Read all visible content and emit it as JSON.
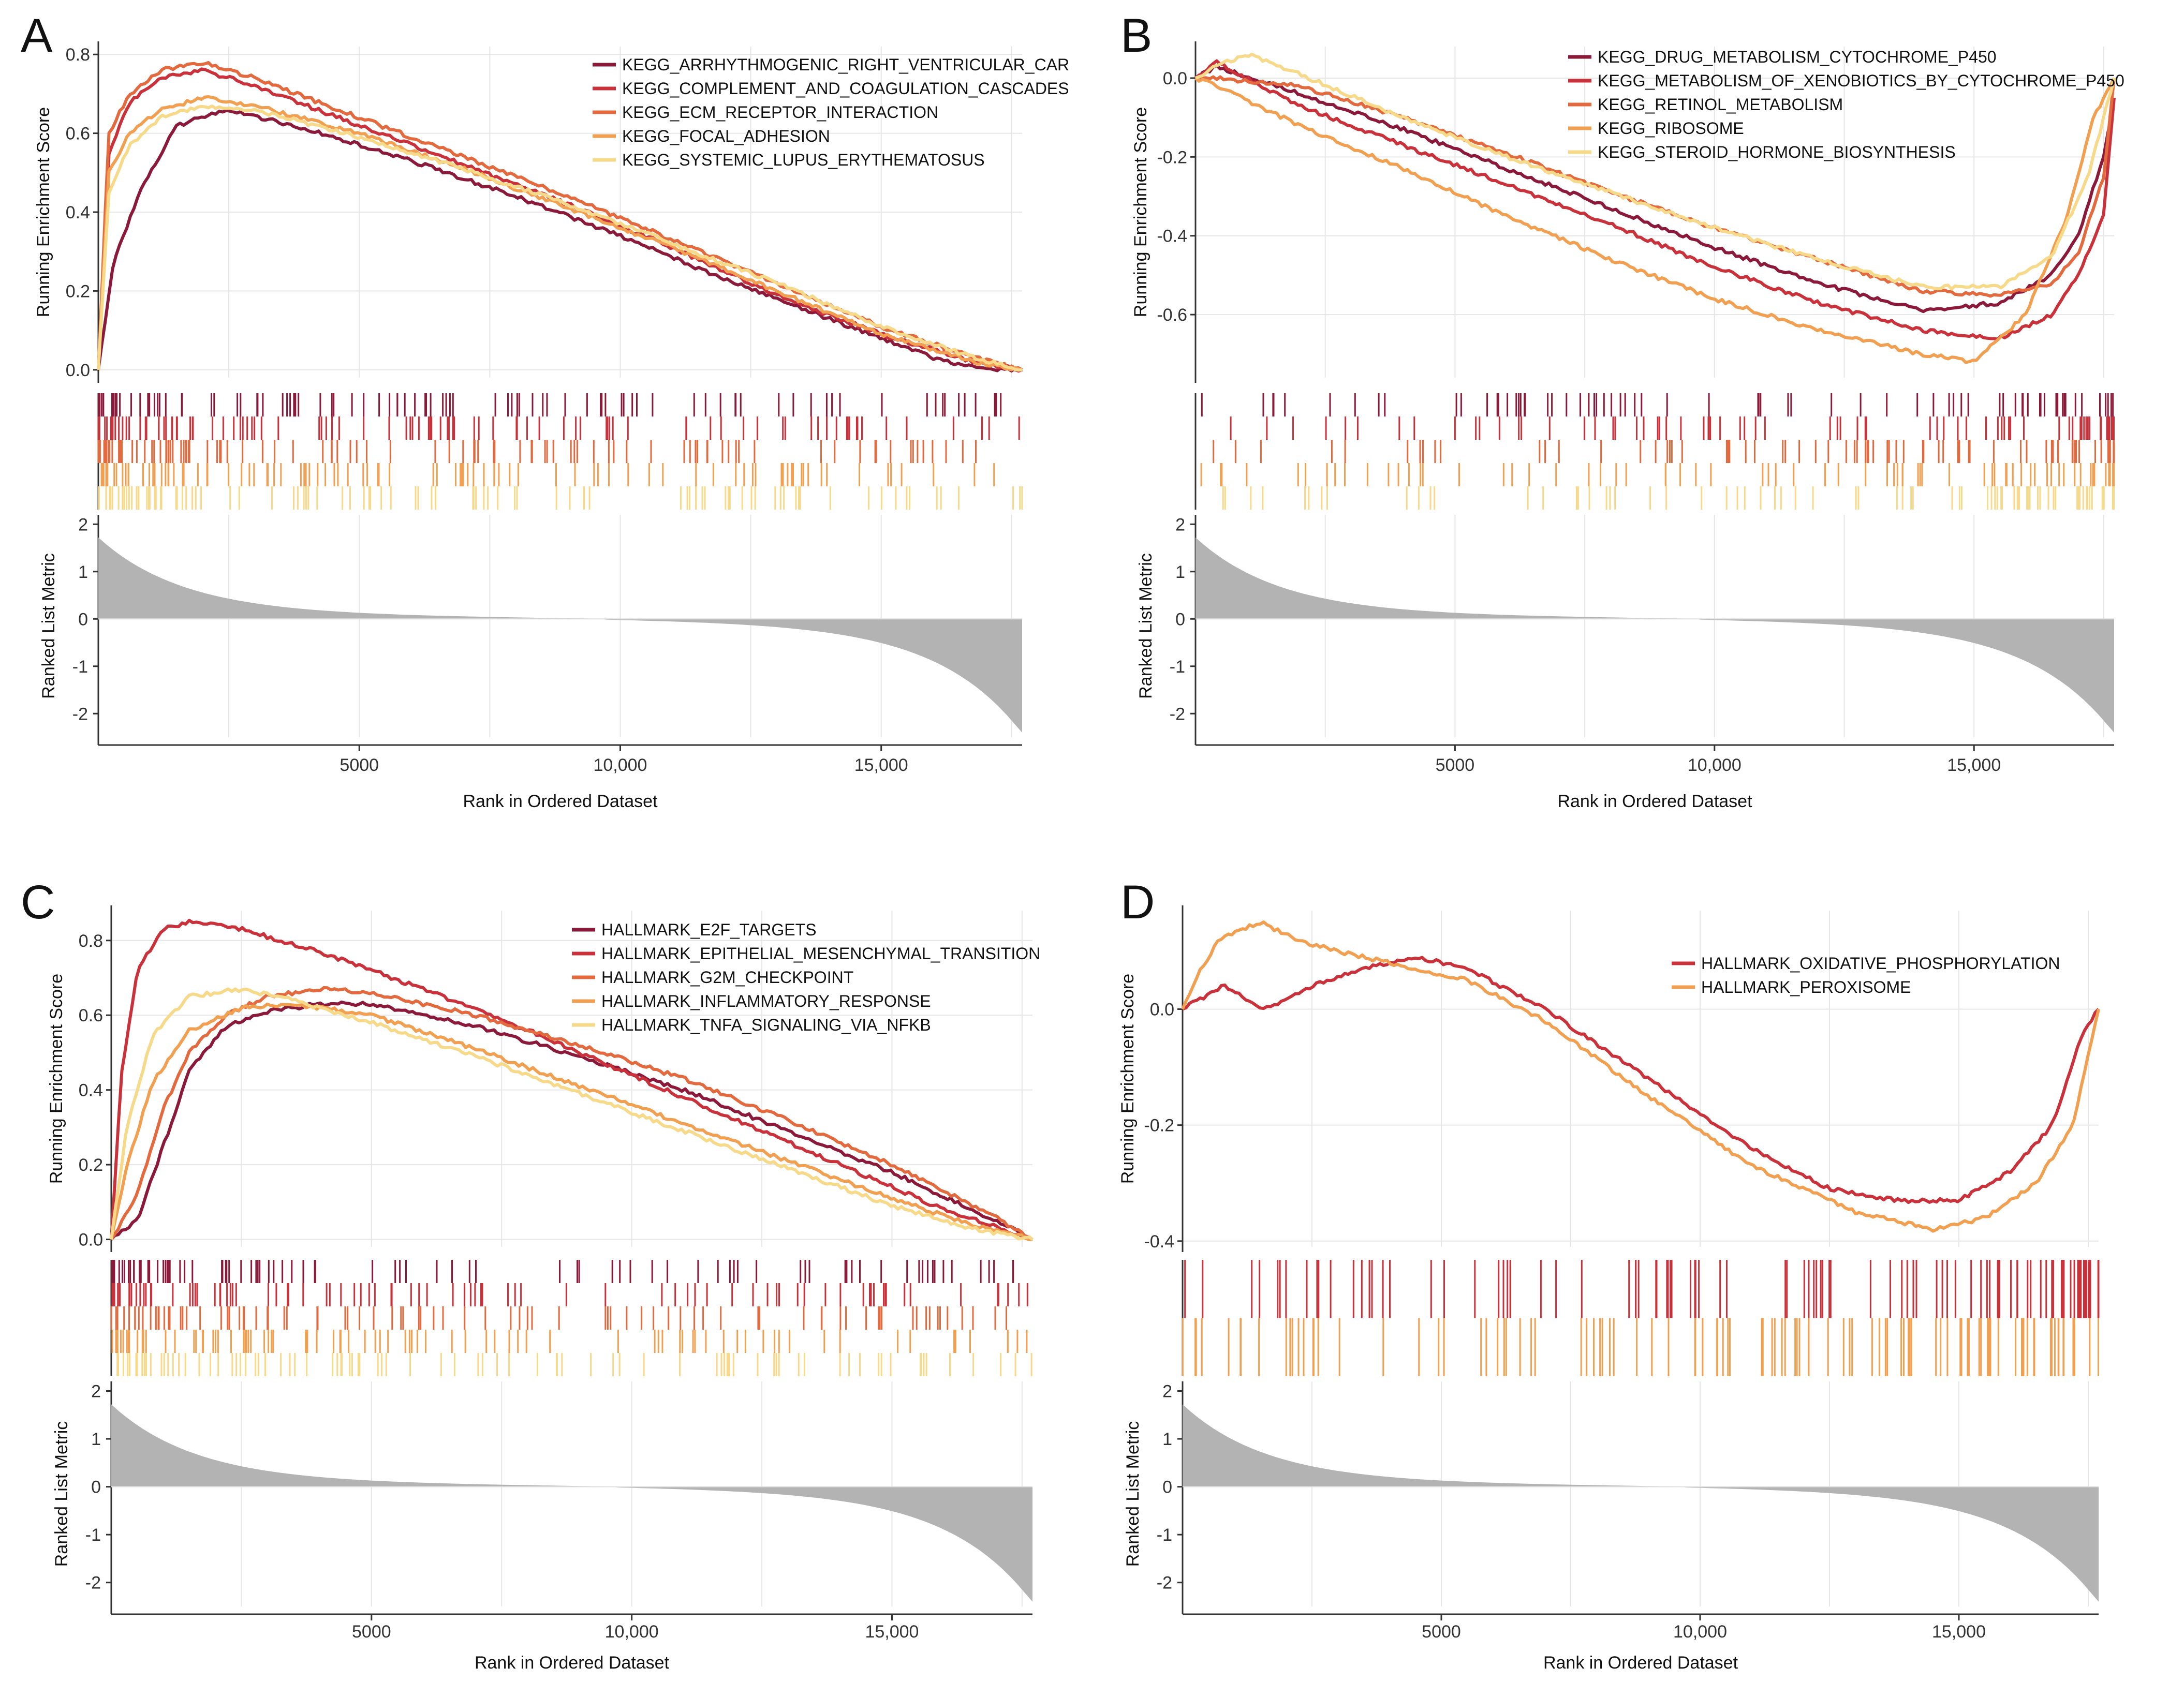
{
  "figure": {
    "description_labels": [
      "A",
      "B",
      "C",
      "D"
    ]
  },
  "colors": {
    "dark_red": "#8b1a3a",
    "red": "#c9313b",
    "orange_red": "#e36a3e",
    "orange": "#f0a050",
    "light_yellow": "#f7d98a",
    "metric_fill": "#b3b3b3"
  },
  "chart_data": [
    {
      "panel": "A",
      "type": "line",
      "subtype": "gsea_enrichment",
      "xlabel": "Rank in Ordered Dataset",
      "ylabel_top": "Running Enrichment Score",
      "ylabel_bottom": "Ranked List Metric",
      "x_ticks": [
        5000,
        10000,
        15000
      ],
      "x_tick_labels": [
        "5000",
        "10,000",
        "15,000"
      ],
      "xlim": [
        0,
        17700
      ],
      "es_ylim": [
        -0.02,
        0.82
      ],
      "es_ticks": [
        0.0,
        0.2,
        0.4,
        0.6,
        0.8
      ],
      "es_tick_labels": [
        "0.0",
        "0.2",
        "0.4",
        "0.6",
        "0.8"
      ],
      "metric_ylim": [
        -2.5,
        2.2
      ],
      "metric_ticks": [
        2,
        1,
        0,
        -1,
        -2
      ],
      "metric_tick_labels": [
        "2",
        "1",
        "0",
        "-1",
        "-2"
      ],
      "legend_position": "top-right",
      "series": [
        {
          "name": "KEGG_ARRHYTHMOGENIC_RIGHT_VENTRICULAR_CARDIOMYOPATHY_ARVC",
          "label": "KEGG_ARRHYTHMOGENIC_RIGHT_VENTRICULAR_CAR",
          "color": "#8b1a3a",
          "x": [
            0,
            300,
            800,
            1500,
            2500,
            4000,
            6000,
            8000,
            10000,
            12000,
            14000,
            16000,
            17000,
            17700
          ],
          "y": [
            0.0,
            0.28,
            0.45,
            0.62,
            0.66,
            0.61,
            0.53,
            0.44,
            0.34,
            0.23,
            0.13,
            0.03,
            0.0,
            0.0
          ]
        },
        {
          "name": "KEGG_COMPLEMENT_AND_COAGULATION_CASCADES",
          "label": "KEGG_COMPLEMENT_AND_COAGULATION_CASCADES",
          "color": "#c9313b",
          "x": [
            0,
            200,
            600,
            1200,
            2000,
            3000,
            5000,
            7000,
            9000,
            11000,
            13000,
            15000,
            16800,
            17700
          ],
          "y": [
            0.0,
            0.55,
            0.68,
            0.74,
            0.76,
            0.72,
            0.62,
            0.52,
            0.42,
            0.31,
            0.19,
            0.09,
            0.02,
            0.0
          ]
        },
        {
          "name": "KEGG_ECM_RECEPTOR_INTERACTION",
          "label": "KEGG_ECM_RECEPTOR_INTERACTION",
          "color": "#e36a3e",
          "x": [
            0,
            200,
            600,
            1200,
            2000,
            3000,
            5000,
            7000,
            9000,
            11000,
            13000,
            15000,
            16800,
            17700
          ],
          "y": [
            0.0,
            0.6,
            0.7,
            0.76,
            0.78,
            0.74,
            0.64,
            0.54,
            0.44,
            0.33,
            0.22,
            0.11,
            0.03,
            0.0
          ]
        },
        {
          "name": "KEGG_FOCAL_ADHESION",
          "label": "KEGG_FOCAL_ADHESION",
          "color": "#f0a050",
          "x": [
            0,
            200,
            600,
            1200,
            2000,
            3000,
            5000,
            7000,
            9000,
            11000,
            13000,
            15000,
            16800,
            17700
          ],
          "y": [
            0.0,
            0.5,
            0.6,
            0.66,
            0.69,
            0.67,
            0.6,
            0.51,
            0.41,
            0.31,
            0.2,
            0.09,
            0.02,
            0.0
          ]
        },
        {
          "name": "KEGG_SYSTEMIC_LUPUS_ERYTHEMATOSUS",
          "label": "KEGG_SYSTEMIC_LUPUS_ERYTHEMATOSUS",
          "color": "#f7d98a",
          "x": [
            0,
            200,
            600,
            1200,
            2000,
            3000,
            5000,
            7000,
            9000,
            11000,
            13000,
            15000,
            16800,
            17700
          ],
          "y": [
            0.0,
            0.45,
            0.57,
            0.64,
            0.67,
            0.66,
            0.59,
            0.51,
            0.42,
            0.32,
            0.22,
            0.11,
            0.03,
            0.0
          ]
        }
      ]
    },
    {
      "panel": "B",
      "type": "line",
      "subtype": "gsea_enrichment",
      "xlabel": "Rank in Ordered Dataset",
      "ylabel_top": "Running Enrichment Score",
      "ylabel_bottom": "Ranked List Metric",
      "x_ticks": [
        5000,
        10000,
        15000
      ],
      "x_tick_labels": [
        "5000",
        "10,000",
        "15,000"
      ],
      "xlim": [
        0,
        17700
      ],
      "es_ylim": [
        -0.76,
        0.08
      ],
      "es_ticks": [
        0.0,
        -0.2,
        -0.4,
        -0.6
      ],
      "es_tick_labels": [
        "0.0",
        "-0.2",
        "-0.4",
        "-0.6"
      ],
      "metric_ylim": [
        -2.5,
        2.2
      ],
      "metric_ticks": [
        2,
        1,
        0,
        -1,
        -2
      ],
      "metric_tick_labels": [
        "2",
        "1",
        "0",
        "-1",
        "-2"
      ],
      "legend_position": "top-right",
      "series": [
        {
          "name": "KEGG_DRUG_METABOLISM_CYTOCHROME_P450",
          "label": "KEGG_DRUG_METABOLISM_CYTOCHROME_P450",
          "color": "#8b1a3a",
          "x": [
            0,
            400,
            2000,
            4000,
            6000,
            8000,
            10000,
            12000,
            14000,
            15500,
            16500,
            17000,
            17500,
            17700
          ],
          "y": [
            0.0,
            0.03,
            -0.04,
            -0.13,
            -0.23,
            -0.33,
            -0.43,
            -0.52,
            -0.59,
            -0.57,
            -0.5,
            -0.4,
            -0.2,
            -0.05
          ]
        },
        {
          "name": "KEGG_METABOLISM_OF_XENOBIOTICS_BY_CYTOCHROME_P450",
          "label": "KEGG_METABOLISM_OF_XENOBIOTICS_BY_CYTOCHROME_P450",
          "color": "#c9313b",
          "x": [
            0,
            400,
            2000,
            4000,
            6000,
            8000,
            10000,
            12000,
            14000,
            15500,
            16500,
            17000,
            17500,
            17700
          ],
          "y": [
            0.0,
            0.04,
            -0.07,
            -0.17,
            -0.27,
            -0.37,
            -0.48,
            -0.57,
            -0.64,
            -0.66,
            -0.6,
            -0.5,
            -0.35,
            -0.05
          ]
        },
        {
          "name": "KEGG_RETINOL_METABOLISM",
          "label": "KEGG_RETINOL_METABOLISM",
          "color": "#e36a3e",
          "x": [
            0,
            400,
            2000,
            4000,
            6000,
            8000,
            10000,
            12000,
            14000,
            15500,
            16500,
            17000,
            17500,
            17700
          ],
          "y": [
            0.0,
            0.0,
            -0.02,
            -0.1,
            -0.19,
            -0.29,
            -0.38,
            -0.46,
            -0.54,
            -0.55,
            -0.52,
            -0.45,
            -0.25,
            0.0
          ]
        },
        {
          "name": "KEGG_RIBOSOME",
          "label": "KEGG_RIBOSOME",
          "color": "#f0a050",
          "x": [
            0,
            400,
            2000,
            4000,
            6000,
            8000,
            10000,
            12000,
            14000,
            15000,
            16000,
            16800,
            17300,
            17700
          ],
          "y": [
            0.0,
            -0.02,
            -0.12,
            -0.23,
            -0.35,
            -0.46,
            -0.56,
            -0.64,
            -0.7,
            -0.72,
            -0.6,
            -0.35,
            -0.1,
            0.0
          ]
        },
        {
          "name": "KEGG_STEROID_HORMONE_BIOSYNTHESIS",
          "label": "KEGG_STEROID_HORMONE_BIOSYNTHESIS",
          "color": "#f7d98a",
          "x": [
            0,
            400,
            1000,
            2000,
            4000,
            6000,
            8000,
            10000,
            12000,
            14000,
            15500,
            16500,
            17200,
            17700
          ],
          "y": [
            0.0,
            0.03,
            0.06,
            0.01,
            -0.1,
            -0.2,
            -0.29,
            -0.38,
            -0.46,
            -0.53,
            -0.53,
            -0.45,
            -0.25,
            0.0
          ]
        }
      ]
    },
    {
      "panel": "C",
      "type": "line",
      "subtype": "gsea_enrichment",
      "xlabel": "Rank in Ordered Dataset",
      "ylabel_top": "Running Enrichment Score",
      "ylabel_bottom": "Ranked List Metric",
      "x_ticks": [
        5000,
        10000,
        15000
      ],
      "x_tick_labels": [
        "5000",
        "10,000",
        "15,000"
      ],
      "xlim": [
        0,
        17700
      ],
      "es_ylim": [
        -0.02,
        0.88
      ],
      "es_ticks": [
        0.0,
        0.2,
        0.4,
        0.6,
        0.8
      ],
      "es_tick_labels": [
        "0.0",
        "0.2",
        "0.4",
        "0.6",
        "0.8"
      ],
      "metric_ylim": [
        -2.5,
        2.2
      ],
      "metric_ticks": [
        2,
        1,
        0,
        -1,
        -2
      ],
      "metric_tick_labels": [
        "2",
        "1",
        "0",
        "-1",
        "-2"
      ],
      "legend_position": "top-right",
      "series": [
        {
          "name": "HALLMARK_E2F_TARGETS",
          "label": "HALLMARK_E2F_TARGETS",
          "color": "#8b1a3a",
          "x": [
            0,
            500,
            1000,
            1500,
            2200,
            3000,
            4000,
            5000,
            7000,
            9000,
            11000,
            13000,
            15000,
            17000,
            17700
          ],
          "y": [
            0.0,
            0.05,
            0.25,
            0.45,
            0.57,
            0.61,
            0.63,
            0.63,
            0.57,
            0.49,
            0.4,
            0.29,
            0.18,
            0.05,
            0.0
          ]
        },
        {
          "name": "HALLMARK_EPITHELIAL_MESENCHYMAL_TRANSITION",
          "label": "HALLMARK_EPITHELIAL_MESENCHYMAL_TRANSITION",
          "color": "#c9313b",
          "x": [
            0,
            200,
            500,
            1000,
            1500,
            2500,
            4000,
            6000,
            8000,
            10000,
            12000,
            14000,
            16000,
            17700
          ],
          "y": [
            0.0,
            0.45,
            0.72,
            0.83,
            0.85,
            0.83,
            0.77,
            0.67,
            0.56,
            0.44,
            0.32,
            0.2,
            0.08,
            0.0
          ]
        },
        {
          "name": "HALLMARK_G2M_CHECKPOINT",
          "label": "HALLMARK_G2M_CHECKPOINT",
          "color": "#e36a3e",
          "x": [
            0,
            500,
            1000,
            1500,
            2200,
            3000,
            4000,
            5000,
            7000,
            9000,
            11000,
            13000,
            15000,
            17000,
            17700
          ],
          "y": [
            0.0,
            0.12,
            0.35,
            0.5,
            0.6,
            0.65,
            0.67,
            0.66,
            0.6,
            0.52,
            0.43,
            0.32,
            0.2,
            0.06,
            0.0
          ]
        },
        {
          "name": "HALLMARK_INFLAMMATORY_RESPONSE",
          "label": "HALLMARK_INFLAMMATORY_RESPONSE",
          "color": "#f0a050",
          "x": [
            0,
            300,
            800,
            1500,
            2500,
            3500,
            5000,
            7000,
            9000,
            11000,
            13000,
            15000,
            16500,
            17700
          ],
          "y": [
            0.0,
            0.2,
            0.42,
            0.56,
            0.62,
            0.63,
            0.6,
            0.51,
            0.41,
            0.31,
            0.21,
            0.11,
            0.04,
            0.0
          ]
        },
        {
          "name": "HALLMARK_TNFA_SIGNALING_VIA_NFKB",
          "label": "HALLMARK_TNFA_SIGNALING_VIA_NFKB",
          "color": "#f7d98a",
          "x": [
            0,
            300,
            800,
            1500,
            2500,
            3500,
            5000,
            7000,
            9000,
            11000,
            13000,
            15000,
            16500,
            17700
          ],
          "y": [
            0.0,
            0.3,
            0.55,
            0.65,
            0.67,
            0.64,
            0.58,
            0.49,
            0.39,
            0.29,
            0.19,
            0.09,
            0.03,
            0.0
          ]
        }
      ]
    },
    {
      "panel": "D",
      "type": "line",
      "subtype": "gsea_enrichment",
      "xlabel": "Rank in Ordered Dataset",
      "ylabel_top": "Running Enrichment Score",
      "ylabel_bottom": "Ranked List Metric",
      "x_ticks": [
        5000,
        10000,
        15000
      ],
      "x_tick_labels": [
        "5000",
        "10,000",
        "15,000"
      ],
      "xlim": [
        0,
        17700
      ],
      "es_ylim": [
        -0.41,
        0.17
      ],
      "es_ticks": [
        0.0,
        -0.2,
        -0.4
      ],
      "es_tick_labels": [
        "0.0",
        "-0.2",
        "-0.4"
      ],
      "metric_ylim": [
        -2.5,
        2.2
      ],
      "metric_ticks": [
        2,
        1,
        0,
        -1,
        -2
      ],
      "metric_tick_labels": [
        "2",
        "1",
        "0",
        "-1",
        "-2"
      ],
      "legend_position": "top-right",
      "series": [
        {
          "name": "HALLMARK_OXIDATIVE_PHOSPHORYLATION",
          "label": "HALLMARK_OXIDATIVE_PHOSPHORYLATION",
          "color": "#c9313b",
          "x": [
            0,
            400,
            800,
            1600,
            2500,
            3500,
            4500,
            5500,
            7000,
            9000,
            11000,
            12500,
            13800,
            15000,
            16000,
            16800,
            17400,
            17700
          ],
          "y": [
            0.0,
            0.02,
            0.04,
            0.0,
            0.04,
            0.07,
            0.09,
            0.07,
            0.0,
            -0.12,
            -0.24,
            -0.31,
            -0.33,
            -0.33,
            -0.28,
            -0.2,
            -0.04,
            0.0
          ]
        },
        {
          "name": "HALLMARK_PEROXISOME",
          "label": "HALLMARK_PEROXISOME",
          "color": "#f0a050",
          "x": [
            0,
            300,
            700,
            1500,
            2200,
            3000,
            4000,
            5500,
            7000,
            9000,
            11000,
            13000,
            14500,
            15500,
            16500,
            17200,
            17700
          ],
          "y": [
            0.0,
            0.06,
            0.12,
            0.15,
            0.12,
            0.1,
            0.08,
            0.05,
            -0.02,
            -0.15,
            -0.27,
            -0.35,
            -0.38,
            -0.36,
            -0.3,
            -0.2,
            0.0
          ]
        }
      ]
    }
  ]
}
